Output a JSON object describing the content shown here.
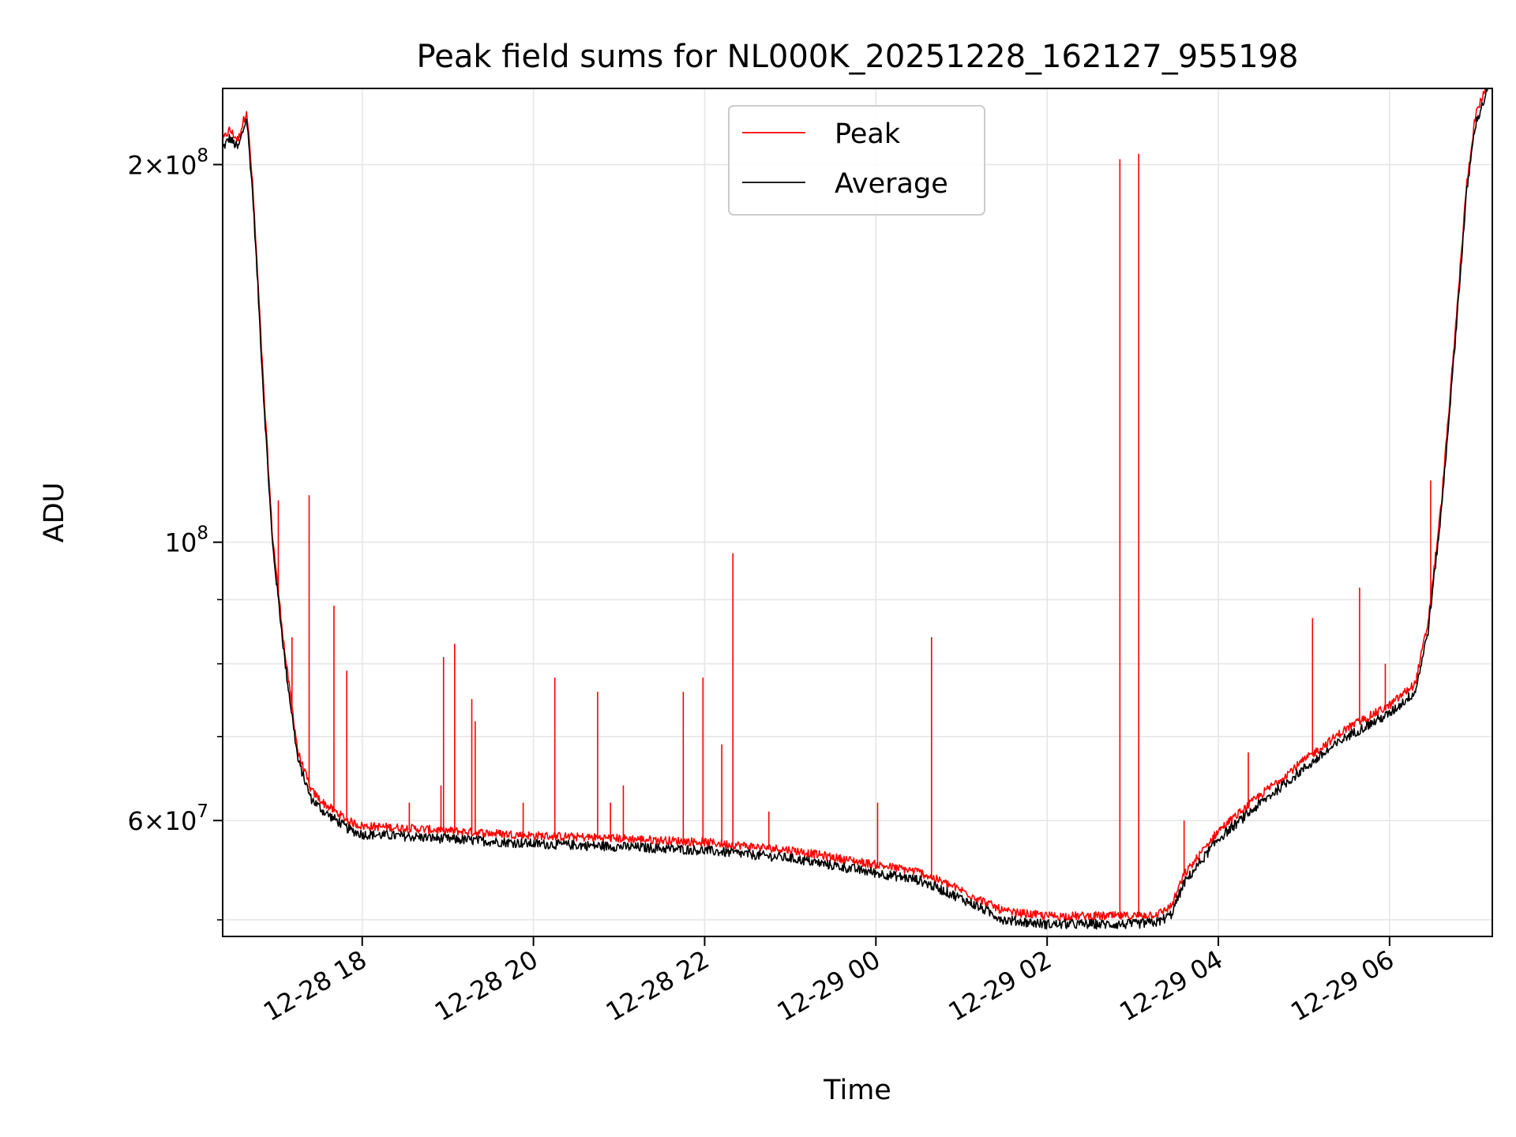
{
  "chart_data": {
    "type": "line",
    "title": "Peak field sums for NL000K_20251228_162127_955198",
    "xlabel": "Time",
    "ylabel": "ADU",
    "yscale": "log",
    "ylim": [
      48500000,
      230000000
    ],
    "xlim_hours": [
      -1.63,
      13.2
    ],
    "grid": true,
    "legend": {
      "position": "top-center",
      "entries": [
        "Peak",
        "Average"
      ]
    },
    "colors": {
      "Peak": "#ff0000",
      "Average": "#000000"
    },
    "x_ticks": [
      {
        "hours": 0,
        "label": "12-28 18"
      },
      {
        "hours": 2,
        "label": "12-28 20"
      },
      {
        "hours": 4,
        "label": "12-28 22"
      },
      {
        "hours": 6,
        "label": "12-29 00"
      },
      {
        "hours": 8,
        "label": "12-29 02"
      },
      {
        "hours": 10,
        "label": "12-29 04"
      },
      {
        "hours": 12,
        "label": "12-29 06"
      }
    ],
    "y_ticks": [
      {
        "value": 60000000,
        "mant": "6",
        "exp": "7"
      },
      {
        "value": 100000000,
        "mant": "",
        "exp": "8"
      },
      {
        "value": 200000000,
        "mant": "2",
        "exp": "8"
      }
    ],
    "y_minor_ticks": [
      50000000,
      70000000,
      80000000,
      90000000
    ],
    "average_series": {
      "name": "Average",
      "x_hours": [
        -1.63,
        -1.55,
        -1.45,
        -1.35,
        -1.28,
        -1.22,
        -1.15,
        -1.05,
        -0.9,
        -0.75,
        -0.6,
        -0.45,
        -0.3,
        -0.15,
        0.0,
        0.5,
        1.0,
        2.0,
        3.0,
        4.0,
        5.0,
        6.0,
        6.5,
        7.0,
        7.5,
        8.0,
        9.0,
        9.3,
        9.45,
        9.6,
        10.0,
        10.5,
        11.0,
        11.5,
        12.0,
        12.3,
        12.45,
        12.6,
        12.75,
        12.9,
        13.0,
        13.2
      ],
      "values": [
        206000000,
        210000000,
        206000000,
        218000000,
        190000000,
        160000000,
        130000000,
        100000000,
        80000000,
        67000000,
        62500000,
        61000000,
        60000000,
        59000000,
        58500000,
        58300000,
        58000000,
        57500000,
        57200000,
        56800000,
        56000000,
        54500000,
        53800000,
        52000000,
        50000000,
        49600000,
        49600000,
        49800000,
        50500000,
        53500000,
        58000000,
        62000000,
        66000000,
        70000000,
        73000000,
        76000000,
        85000000,
        105000000,
        140000000,
        190000000,
        215000000,
        235000000
      ]
    },
    "peak_offset_fraction": 0.012,
    "peak_spikes": [
      {
        "hours": -0.98,
        "value": 108000000
      },
      {
        "hours": -0.82,
        "value": 84000000
      },
      {
        "hours": -0.62,
        "value": 109000000
      },
      {
        "hours": -0.33,
        "value": 89000000
      },
      {
        "hours": -0.18,
        "value": 79000000
      },
      {
        "hours": 0.55,
        "value": 62000000
      },
      {
        "hours": 0.92,
        "value": 64000000
      },
      {
        "hours": 0.95,
        "value": 81000000
      },
      {
        "hours": 1.08,
        "value": 83000000
      },
      {
        "hours": 1.28,
        "value": 75000000
      },
      {
        "hours": 1.32,
        "value": 72000000
      },
      {
        "hours": 1.88,
        "value": 62000000
      },
      {
        "hours": 2.25,
        "value": 78000000
      },
      {
        "hours": 2.75,
        "value": 76000000
      },
      {
        "hours": 2.9,
        "value": 62000000
      },
      {
        "hours": 3.05,
        "value": 64000000
      },
      {
        "hours": 3.75,
        "value": 76000000
      },
      {
        "hours": 3.98,
        "value": 78000000
      },
      {
        "hours": 4.2,
        "value": 69000000
      },
      {
        "hours": 4.33,
        "value": 98000000
      },
      {
        "hours": 4.75,
        "value": 61000000
      },
      {
        "hours": 6.02,
        "value": 62000000
      },
      {
        "hours": 6.65,
        "value": 84000000
      },
      {
        "hours": 8.85,
        "value": 202000000
      },
      {
        "hours": 9.07,
        "value": 204000000
      },
      {
        "hours": 9.6,
        "value": 60000000
      },
      {
        "hours": 10.35,
        "value": 68000000
      },
      {
        "hours": 11.1,
        "value": 87000000
      },
      {
        "hours": 11.65,
        "value": 92000000
      },
      {
        "hours": 11.95,
        "value": 80000000
      },
      {
        "hours": 12.48,
        "value": 112000000
      }
    ]
  }
}
